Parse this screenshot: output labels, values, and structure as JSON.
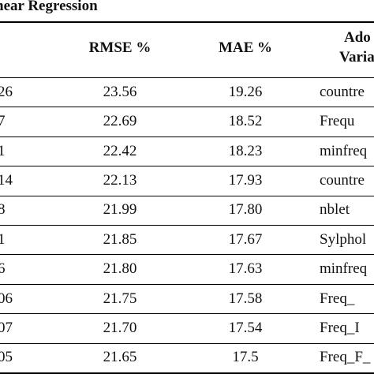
{
  "caption": "near Regression",
  "table": {
    "headers": [
      "",
      "RMSE %",
      "MAE %",
      "Ado",
      "Varia"
    ],
    "rows": [
      {
        "first": "26",
        "rmse": "23.56",
        "mae": "19.26",
        "variable": "countre"
      },
      {
        "first": "7",
        "rmse": "22.69",
        "mae": "18.52",
        "variable": "Frequ"
      },
      {
        "first": "1",
        "rmse": "22.42",
        "mae": "18.23",
        "variable": "minfreq"
      },
      {
        "first": "14",
        "rmse": "22.13",
        "mae": "17.93",
        "variable": "countre"
      },
      {
        "first": "8",
        "rmse": "21.99",
        "mae": "17.80",
        "variable": "nblet"
      },
      {
        "first": "1",
        "rmse": "21.85",
        "mae": "17.67",
        "variable": "Sylphol"
      },
      {
        "first": "6",
        "rmse": "21.80",
        "mae": "17.63",
        "variable": "minfreq"
      },
      {
        "first": "06",
        "rmse": "21.75",
        "mae": "17.58",
        "variable": "Freq_"
      },
      {
        "first": "07",
        "rmse": "21.70",
        "mae": "17.54",
        "variable": "Freq_I"
      },
      {
        "first": "05",
        "rmse": "21.65",
        "mae": "17.5",
        "variable": "Freq_F_"
      }
    ]
  }
}
